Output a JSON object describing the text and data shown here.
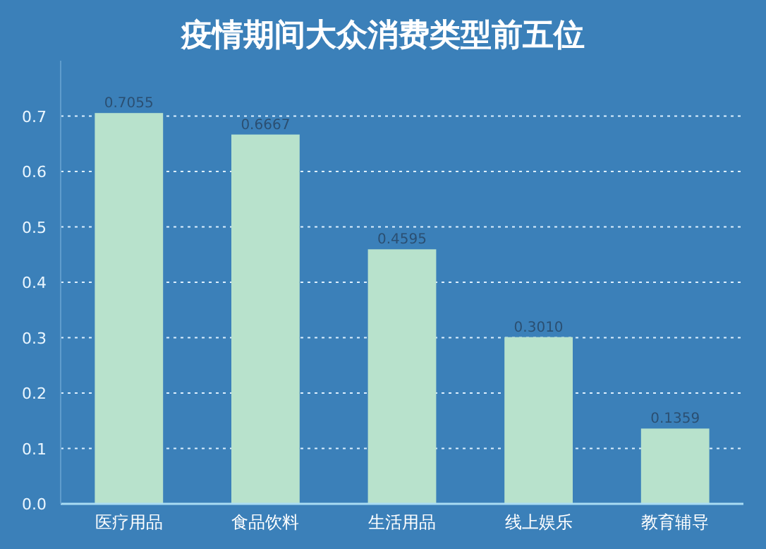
{
  "chart_data": {
    "type": "bar",
    "title": "疫情期间大众消费类型前五位",
    "categories": [
      "医疗用品",
      "食品饮料",
      "生活用品",
      "线上娱乐",
      "教育辅导"
    ],
    "values": [
      0.7055,
      0.6667,
      0.4595,
      0.301,
      0.1359
    ],
    "value_labels": [
      "0.7055",
      "0.6667",
      "0.4595",
      "0.3010",
      "0.1359"
    ],
    "color": "#b8e2cc",
    "ylim": [
      0,
      0.8
    ],
    "yticks": [
      {
        "value": 0,
        "label": "0.0"
      },
      {
        "value": 0.1,
        "label": "0.1"
      },
      {
        "value": 0.2,
        "label": "0.2"
      },
      {
        "value": 0.3,
        "label": "0.3"
      },
      {
        "value": 0.4,
        "label": "0.4"
      },
      {
        "value": 0.5,
        "label": "0.5"
      },
      {
        "value": 0.6,
        "label": "0.6"
      },
      {
        "value": 0.7,
        "label": "0.7"
      }
    ],
    "grid": "y"
  }
}
